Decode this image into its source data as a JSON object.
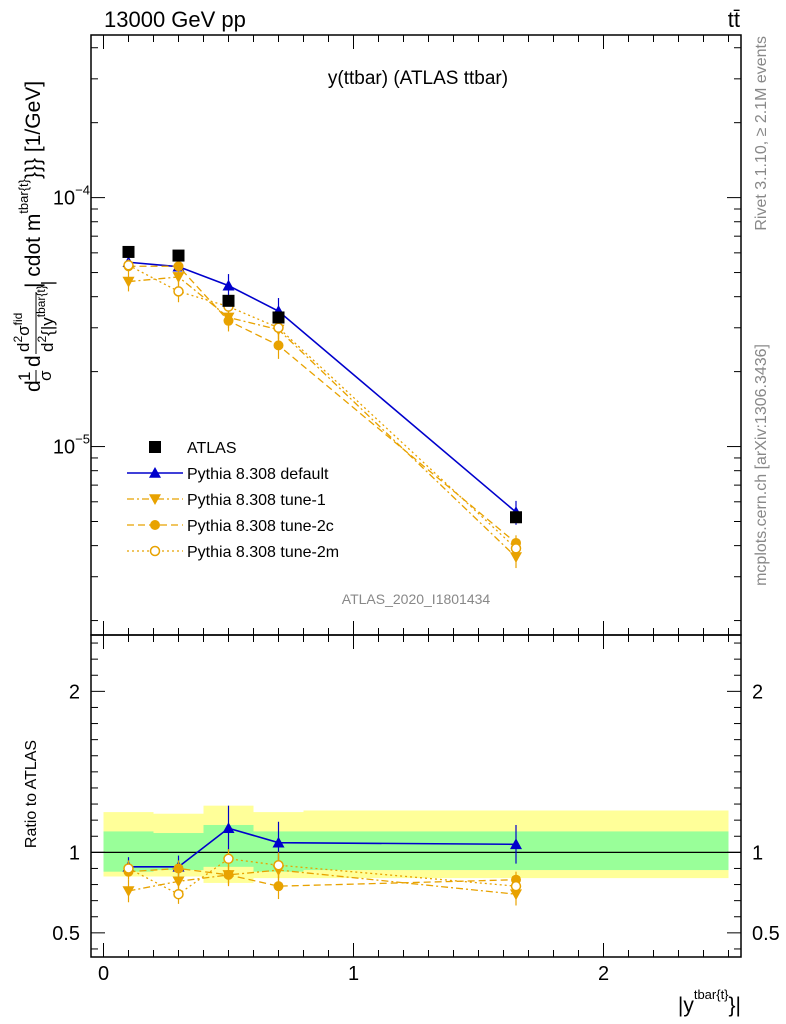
{
  "header": {
    "left": "13000 GeV pp",
    "right": "tt̄"
  },
  "side_text": {
    "rivet": "Rivet 3.1.10, ≥ 2.1M events",
    "mcplots": "mcplots.cern.ch [arXiv:1306.3436]"
  },
  "chart_data": [
    {
      "type": "line",
      "title": "y(ttbar) (ATLAS ttbar)",
      "watermark": "ATLAS_2020_I1801434",
      "ylabel_parts": {
        "d1": "d",
        "one": "1",
        "sigma": "σ",
        "d2": "d",
        "d2sig_num": "d",
        "d2sig_num_sup": "2",
        "d2sig_num_sigma": "σ",
        "d2sig_num_sup2": "fid",
        "d2sig_den": "d",
        "d2sig_den_sup": "2",
        "d2sig_den_rest": "{|y",
        "d2sig_den_sup2": "tbar{t}",
        "d2sig_den_end": "|",
        "tail": "| cdot m",
        "tail_sup": "tbar{t}",
        "tail_end": "}}} [1/GeV]"
      },
      "yscale": "log",
      "ylim": [
        1.75e-06,
        0.00045
      ],
      "yticks": [
        {
          "value": 0.0001,
          "label": "10",
          "exp": "−4"
        },
        {
          "value": 1e-05,
          "label": "10",
          "exp": "−5"
        }
      ],
      "xlim": [
        -0.05,
        2.55
      ],
      "x": [
        0.1,
        0.3,
        0.5,
        0.7,
        1.65
      ],
      "series": [
        {
          "name": "ATLAS",
          "style": "data",
          "color": "#000000",
          "marker": "square",
          "values": [
            6.05e-05,
            5.85e-05,
            3.85e-05,
            3.3e-05,
            5.2e-06
          ]
        },
        {
          "name": "Pythia 8.308 default",
          "style": "solid",
          "color": "#0000cc",
          "marker": "triangle-up",
          "values": [
            5.5e-05,
            5.28e-05,
            4.43e-05,
            3.5e-05,
            5.45e-06
          ],
          "err": [
            2.5e-06,
            3.5e-06,
            5e-06,
            4.5e-06,
            6e-07
          ]
        },
        {
          "name": "Pythia 8.308 tune-1",
          "style": "dashdot",
          "color": "#e8a200",
          "marker": "triangle-down",
          "values": [
            4.6e-05,
            4.8e-05,
            3.3e-05,
            2.95e-05,
            3.6e-06
          ],
          "err": [
            4e-06,
            4e-06,
            3e-06,
            3e-06,
            3.5e-07
          ]
        },
        {
          "name": "Pythia 8.308 tune-2c",
          "style": "dashed",
          "color": "#e8a200",
          "marker": "circle",
          "values": [
            5.3e-05,
            5.3e-05,
            3.2e-05,
            2.55e-05,
            4.1e-06
          ],
          "err": [
            3e-06,
            3e-06,
            3e-06,
            3e-06,
            3e-07
          ]
        },
        {
          "name": "Pythia 8.308 tune-2m",
          "style": "dotted",
          "color": "#e8a200",
          "marker": "circle-open",
          "values": [
            5.35e-05,
            4.2e-05,
            3.65e-05,
            3e-05,
            3.9e-06
          ],
          "err": [
            3e-06,
            4e-06,
            3e-06,
            3e-06,
            3e-07
          ]
        }
      ]
    },
    {
      "type": "line",
      "ylabel": "Ratio to ATLAS",
      "xlabel_main": "|y",
      "xlabel_sup": "tbar{t}",
      "xlabel_end": "}|",
      "ylim": [
        0.35,
        2.35
      ],
      "yticks": [
        {
          "value": 0.5,
          "label": "0.5"
        },
        {
          "value": 1,
          "label": "1"
        },
        {
          "value": 2,
          "label": "2"
        }
      ],
      "xlim": [
        -0.05,
        2.55
      ],
      "xticks": [
        {
          "value": 0,
          "label": "0"
        },
        {
          "value": 1,
          "label": "1"
        },
        {
          "value": 2,
          "label": "2"
        }
      ],
      "bins": [
        0,
        0.2,
        0.4,
        0.6,
        0.8,
        2.5
      ],
      "band_green": [
        [
          0.88,
          1.13
        ],
        [
          0.89,
          1.12
        ],
        [
          0.91,
          1.17
        ],
        [
          0.88,
          1.13
        ],
        [
          0.89,
          1.13
        ]
      ],
      "band_yellow": [
        [
          0.85,
          1.25
        ],
        [
          0.85,
          1.24
        ],
        [
          0.81,
          1.29
        ],
        [
          0.84,
          1.25
        ],
        [
          0.84,
          1.26
        ]
      ],
      "x": [
        0.1,
        0.3,
        0.5,
        0.7,
        1.65
      ],
      "series": [
        {
          "name": "Pythia 8.308 default",
          "color": "#0000cc",
          "style": "solid",
          "marker": "triangle-up",
          "values": [
            0.91,
            0.91,
            1.15,
            1.06,
            1.05
          ],
          "err": [
            0.06,
            0.07,
            0.14,
            0.13,
            0.12
          ]
        },
        {
          "name": "Pythia 8.308 tune-1",
          "color": "#e8a200",
          "style": "dashdot",
          "marker": "triangle-down",
          "values": [
            0.76,
            0.82,
            0.86,
            0.89,
            0.74
          ],
          "err": [
            0.07,
            0.07,
            0.07,
            0.09,
            0.07
          ]
        },
        {
          "name": "Pythia 8.308 tune-2c",
          "color": "#e8a200",
          "style": "dashed",
          "marker": "circle",
          "values": [
            0.88,
            0.9,
            0.86,
            0.79,
            0.83
          ],
          "err": [
            0.05,
            0.05,
            0.06,
            0.08,
            0.05
          ]
        },
        {
          "name": "Pythia 8.308 tune-2m",
          "color": "#e8a200",
          "style": "dotted",
          "marker": "circle-open",
          "values": [
            0.9,
            0.74,
            0.96,
            0.92,
            0.79
          ],
          "err": [
            0.05,
            0.06,
            0.06,
            0.08,
            0.06
          ]
        }
      ]
    }
  ]
}
